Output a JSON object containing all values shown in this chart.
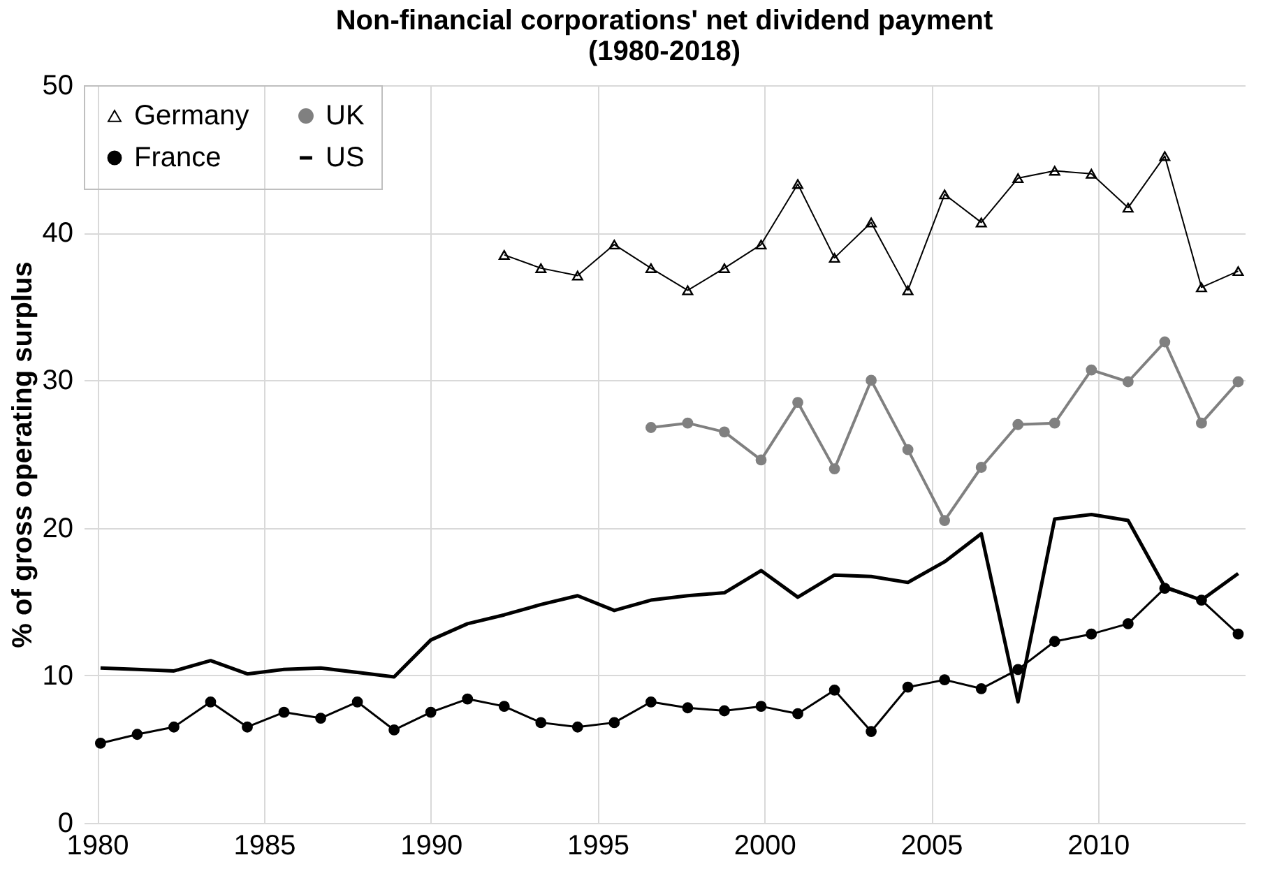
{
  "chart_data": {
    "type": "line",
    "title": "Non-financial corporations' net dividend payment (1980-2018)",
    "ylabel": "% of gross operating surplus",
    "x": [
      1980.1,
      1981.2,
      1982.3,
      1983.4,
      1984.5,
      1985.6,
      1986.7,
      1987.8,
      1988.9,
      1990.0,
      1991.1,
      1992.2,
      1993.3,
      1994.4,
      1995.5,
      1996.6,
      1997.7,
      1998.8,
      1999.9,
      2001.0,
      2002.1,
      2003.2,
      2004.3,
      2005.4,
      2006.5,
      2007.6,
      2008.7,
      2009.8,
      2010.9,
      2012.0,
      2013.1,
      2014.2
    ],
    "xlim": [
      1979.6,
      2014.4
    ],
    "xticks": [
      1980,
      1985,
      1990,
      1995,
      2000,
      2005,
      2010
    ],
    "ylim": [
      0,
      50
    ],
    "yticks": [
      0,
      10,
      20,
      30,
      40,
      50
    ],
    "grid": true,
    "legend": "top left",
    "series": [
      {
        "name": "Germany",
        "color": "#000000",
        "marker": "triangle",
        "values": [
          null,
          null,
          null,
          null,
          null,
          null,
          null,
          null,
          null,
          null,
          null,
          38.5,
          37.6,
          37.1,
          39.2,
          37.6,
          36.1,
          37.6,
          39.2,
          43.3,
          38.3,
          40.7,
          36.1,
          42.6,
          40.7,
          43.7,
          44.2,
          44.0,
          41.7,
          45.2,
          36.3,
          37.4
        ]
      },
      {
        "name": "France",
        "color": "#000000",
        "marker": "circle",
        "values": [
          5.4,
          6.0,
          6.5,
          8.2,
          6.5,
          7.5,
          7.1,
          8.2,
          6.3,
          7.5,
          8.4,
          7.9,
          6.8,
          6.5,
          6.8,
          8.2,
          7.8,
          7.6,
          7.9,
          7.4,
          9.0,
          6.2,
          9.2,
          9.7,
          9.1,
          10.4,
          12.3,
          12.8,
          13.5,
          15.9,
          15.1,
          12.8
        ]
      },
      {
        "name": "UK",
        "color": "#808080",
        "marker": "circle",
        "values": [
          null,
          null,
          null,
          null,
          null,
          null,
          null,
          null,
          null,
          null,
          null,
          null,
          null,
          null,
          null,
          26.8,
          27.1,
          26.5,
          24.6,
          28.5,
          24.0,
          30.0,
          25.3,
          20.5,
          24.1,
          27.0,
          27.1,
          30.7,
          29.9,
          32.6,
          27.1,
          29.9
        ]
      },
      {
        "name": "US",
        "color": "#000000",
        "marker": "none",
        "values": [
          10.5,
          10.4,
          10.3,
          11.0,
          10.1,
          10.4,
          10.5,
          10.2,
          9.9,
          12.4,
          13.5,
          14.1,
          14.8,
          15.4,
          14.4,
          15.1,
          15.4,
          15.6,
          17.1,
          15.3,
          16.8,
          16.7,
          16.3,
          17.7,
          19.6,
          8.2,
          20.6,
          20.9,
          20.5,
          16.0,
          15.1,
          16.9
        ]
      }
    ]
  }
}
